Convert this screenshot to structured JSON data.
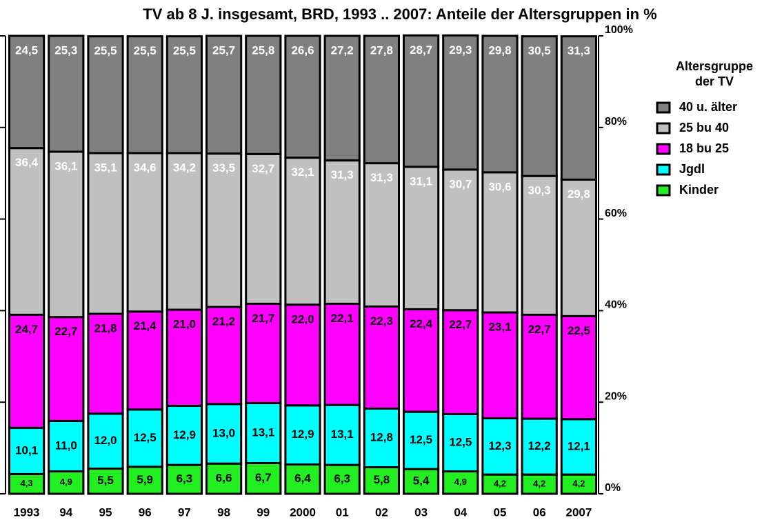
{
  "chart_data": {
    "type": "stacked_bar",
    "title": "TV ab 8 J. insgesamt, BRD, 1993 .. 2007: Anteile der Altersgruppen in %",
    "categories": [
      "1993",
      "94",
      "95",
      "96",
      "97",
      "98",
      "99",
      "2000",
      "01",
      "02",
      "03",
      "04",
      "05",
      "06",
      "2007"
    ],
    "series": [
      {
        "name": "Kinder",
        "color": "#22ee22",
        "label_color": "#000000",
        "values": [
          4.3,
          4.9,
          5.5,
          5.9,
          6.3,
          6.6,
          6.7,
          6.4,
          6.3,
          5.8,
          5.4,
          4.9,
          4.2,
          4.2,
          4.2
        ],
        "value_labels": [
          "4,3",
          "4,9",
          "5,5",
          "5,9",
          "6,3",
          "6,6",
          "6,7",
          "6,4",
          "6,3",
          "5,8",
          "5,4",
          "4,9",
          "4,2",
          "4,2",
          "4,2"
        ]
      },
      {
        "name": "Jgdl",
        "color": "#00ffff",
        "label_color": "#000000",
        "values": [
          10.1,
          11.0,
          12.0,
          12.5,
          12.9,
          13.0,
          13.1,
          12.9,
          13.1,
          12.8,
          12.5,
          12.5,
          12.3,
          12.2,
          12.1
        ],
        "value_labels": [
          "10,1",
          "11,0",
          "12,0",
          "12,5",
          "12,9",
          "13,0",
          "13,1",
          "12,9",
          "13,1",
          "12,8",
          "12,5",
          "12,5",
          "12,3",
          "12,2",
          "12,1"
        ]
      },
      {
        "name": "18 bu 25",
        "color": "#ff00ff",
        "label_color": "#000000",
        "values": [
          24.7,
          22.7,
          21.8,
          21.4,
          21.0,
          21.2,
          21.7,
          22.0,
          22.1,
          22.3,
          22.4,
          22.7,
          23.1,
          22.7,
          22.5
        ],
        "value_labels": [
          "24,7",
          "22,7",
          "21,8",
          "21,4",
          "21,0",
          "21,2",
          "21,7",
          "22,0",
          "22,1",
          "22,3",
          "22,4",
          "22,7",
          "23,1",
          "22,7",
          "22,5"
        ]
      },
      {
        "name": "25 bu 40",
        "color": "#c0c0c0",
        "label_color": "#ffffff",
        "values": [
          36.4,
          36.1,
          35.1,
          34.6,
          34.2,
          33.5,
          32.7,
          32.1,
          31.3,
          31.3,
          31.1,
          30.7,
          30.6,
          30.3,
          29.8
        ],
        "value_labels": [
          "36,4",
          "36,1",
          "35,1",
          "34,6",
          "34,2",
          "33,5",
          "32,7",
          "32,1",
          "31,3",
          "31,3",
          "31,1",
          "30,7",
          "30,6",
          "30,3",
          "29,8"
        ]
      },
      {
        "name": "40 u. älter",
        "color": "#808080",
        "label_color": "#ffffff",
        "values": [
          24.5,
          25.3,
          25.5,
          25.5,
          25.5,
          25.7,
          25.8,
          26.6,
          27.2,
          27.8,
          28.7,
          29.3,
          29.8,
          30.5,
          31.3
        ],
        "value_labels": [
          "24,5",
          "25,3",
          "25,5",
          "25,5",
          "25,5",
          "25,7",
          "25,8",
          "26,6",
          "27,2",
          "27,8",
          "28,7",
          "29,3",
          "29,8",
          "30,5",
          "31,3"
        ]
      }
    ],
    "legend_title": [
      "Altersgruppe",
      "der TV"
    ],
    "ylim": [
      0,
      100
    ],
    "yticks": [
      {
        "value": 0,
        "label": "0%"
      },
      {
        "value": 20,
        "label": "20%"
      },
      {
        "value": 40,
        "label": "40%"
      },
      {
        "value": 60,
        "label": "60%"
      },
      {
        "value": 80,
        "label": "80%"
      },
      {
        "value": 100,
        "label": "100%"
      }
    ]
  }
}
